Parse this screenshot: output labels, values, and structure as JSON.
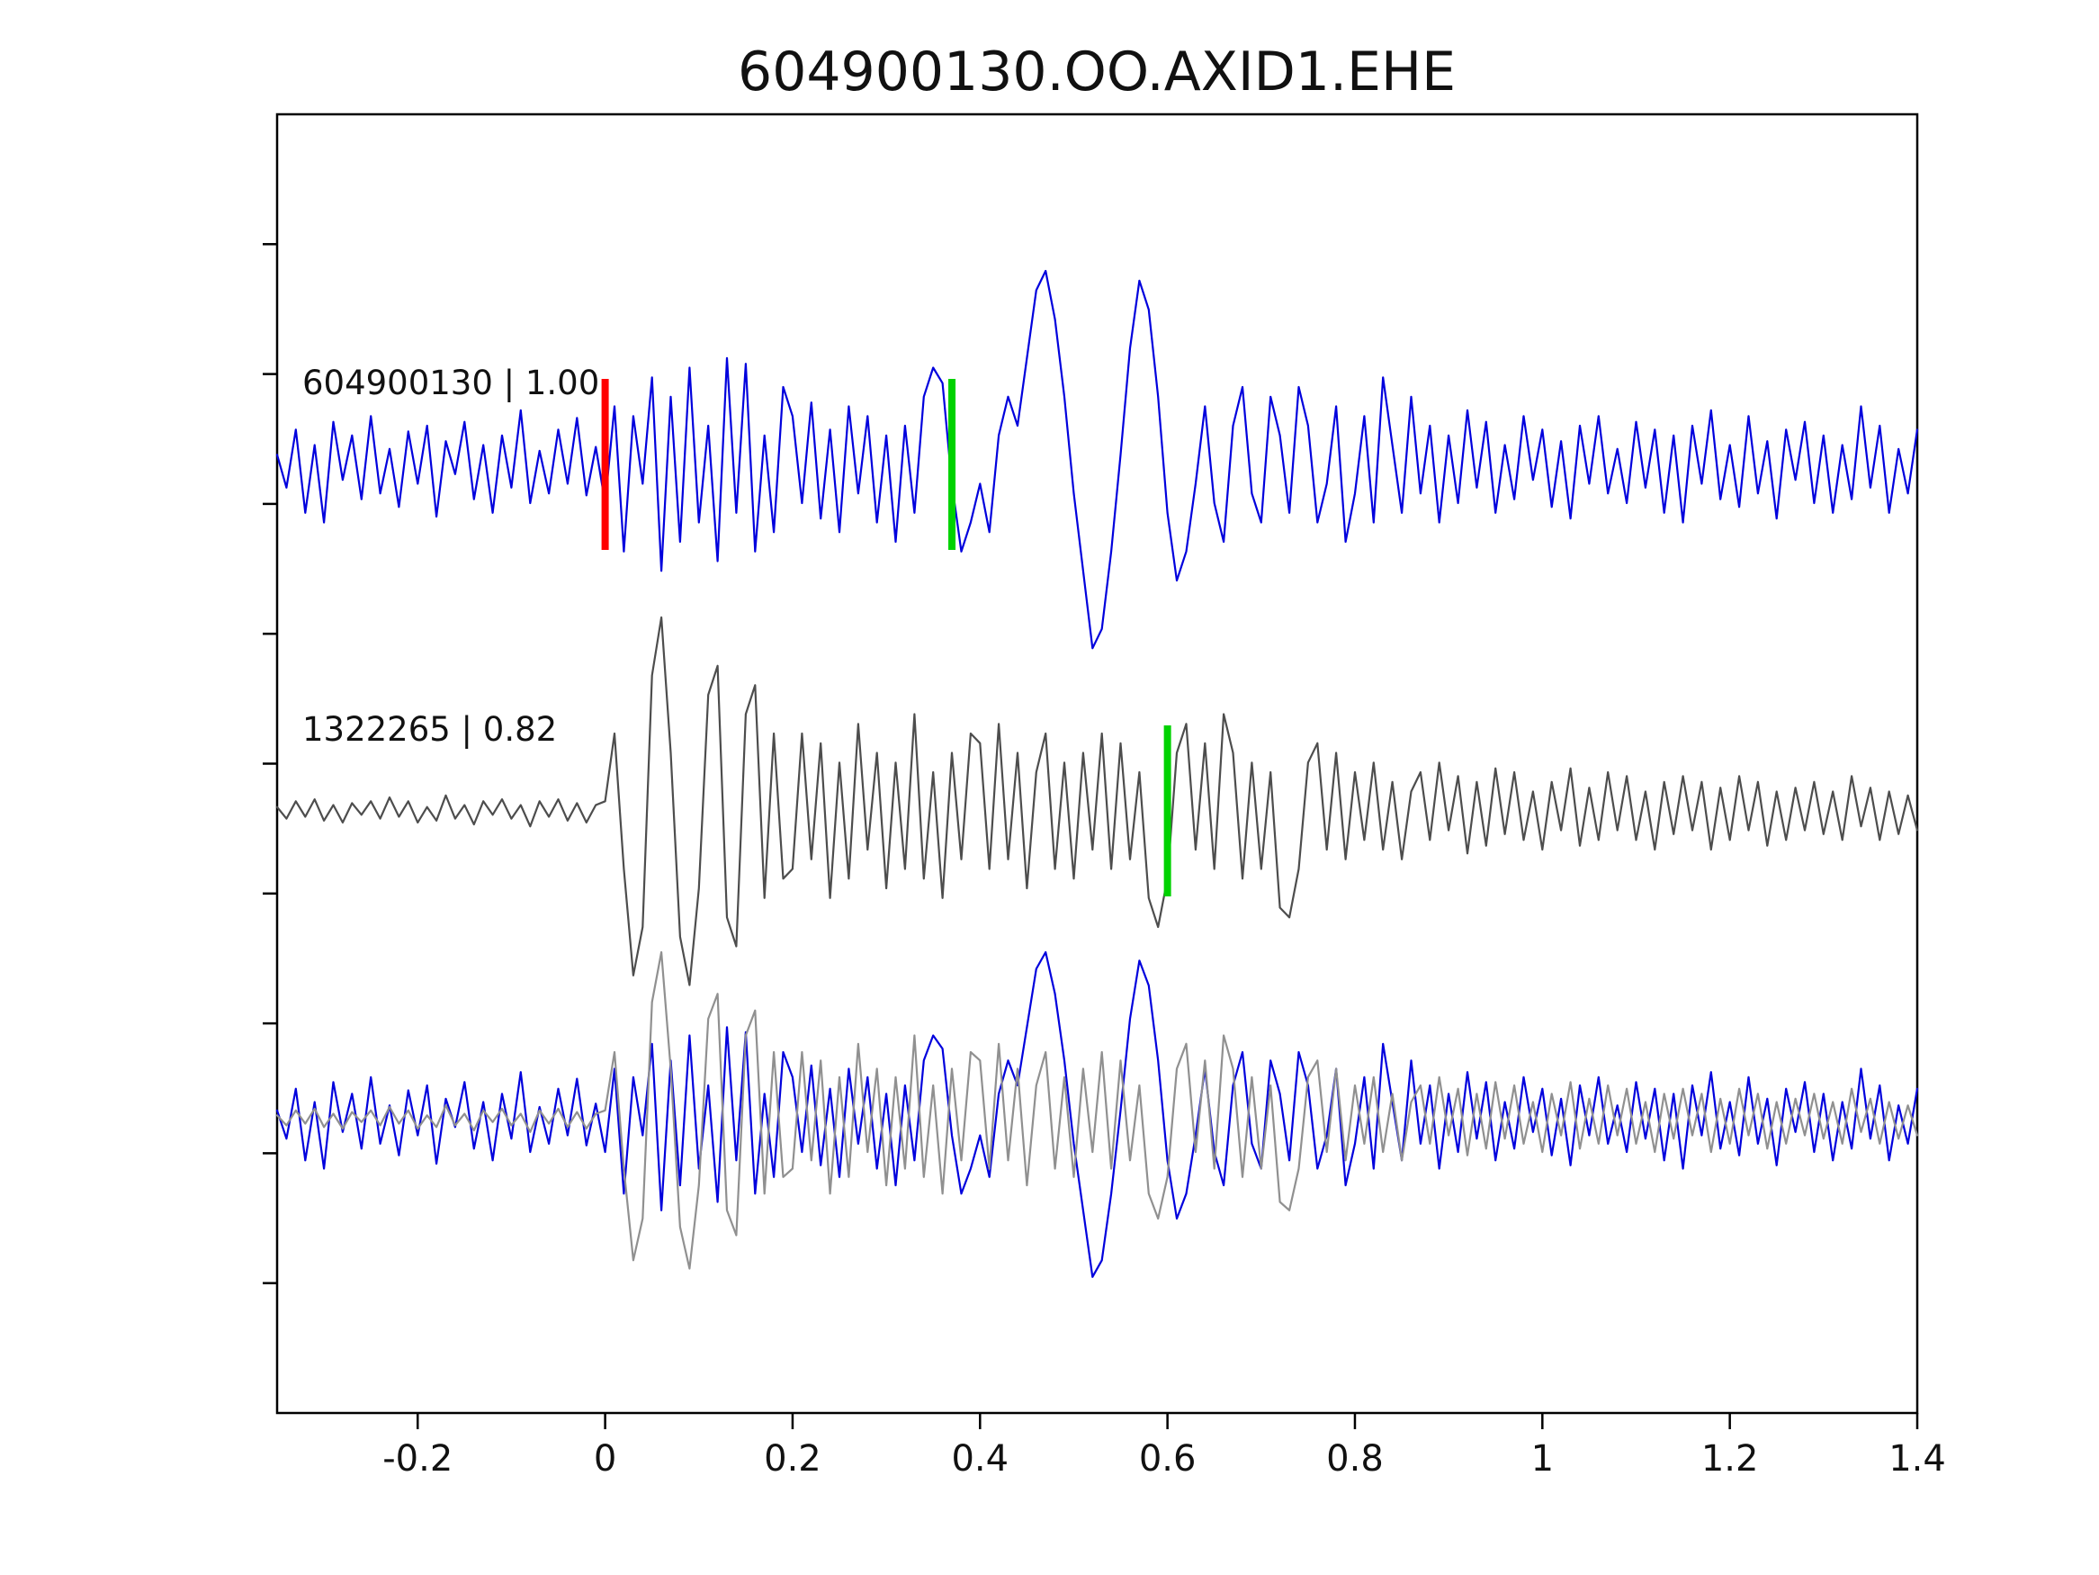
{
  "title": "604900130.OO.AXID1.EHE",
  "chart_data": {
    "type": "line",
    "title": "604900130.OO.AXID1.EHE",
    "subtitle": "",
    "xlabel": "",
    "ylabel": "",
    "grid": false,
    "legend_position": "none",
    "axis_color": "#000000",
    "background_color": "#ffffff",
    "xlim": [
      -0.35,
      1.4
    ],
    "xticks": [
      -0.2,
      0,
      0.2,
      0.4,
      0.6,
      0.8,
      1,
      1.2,
      1.4
    ],
    "xtick_labels": [
      "-0.2",
      "0",
      "0.2",
      "0.4",
      "0.6",
      "0.8",
      "1",
      "1.2",
      "1.4"
    ],
    "rows": 3,
    "traces": [
      {
        "name": "template-trace",
        "label": "604900130 | 1.00",
        "id": "604900130",
        "correlation": "1.00",
        "color": "#0000dd",
        "overlay_color": "#0000dd",
        "rows": [
          0,
          2
        ],
        "x_start": -0.35,
        "dx": 0.01,
        "values": [
          0.05,
          -0.12,
          0.18,
          -0.25,
          0.1,
          -0.3,
          0.22,
          -0.08,
          0.15,
          -0.18,
          0.25,
          -0.15,
          0.08,
          -0.22,
          0.17,
          -0.1,
          0.2,
          -0.27,
          0.12,
          -0.05,
          0.22,
          -0.18,
          0.1,
          -0.25,
          0.15,
          -0.12,
          0.28,
          -0.2,
          0.07,
          -0.15,
          0.18,
          -0.1,
          0.24,
          -0.16,
          0.09,
          -0.2,
          0.3,
          -0.45,
          0.25,
          -0.1,
          0.45,
          -0.55,
          0.35,
          -0.4,
          0.5,
          -0.3,
          0.2,
          -0.5,
          0.55,
          -0.25,
          0.52,
          -0.45,
          0.15,
          -0.35,
          0.4,
          0.25,
          -0.2,
          0.32,
          -0.28,
          0.18,
          -0.35,
          0.3,
          -0.15,
          0.25,
          -0.3,
          0.15,
          -0.4,
          0.2,
          -0.25,
          0.35,
          0.5,
          0.42,
          -0.1,
          -0.45,
          -0.3,
          -0.1,
          -0.35,
          0.15,
          0.35,
          0.2,
          0.55,
          0.9,
          1.0,
          0.75,
          0.35,
          -0.15,
          -0.55,
          -0.95,
          -0.85,
          -0.45,
          0.05,
          0.6,
          0.95,
          0.8,
          0.35,
          -0.25,
          -0.6,
          -0.45,
          -0.1,
          0.3,
          -0.2,
          -0.4,
          0.2,
          0.4,
          -0.15,
          -0.3,
          0.35,
          0.15,
          -0.25,
          0.4,
          0.2,
          -0.3,
          -0.1,
          0.3,
          -0.4,
          -0.15,
          0.25,
          -0.3,
          0.45,
          0.1,
          -0.25,
          0.35,
          -0.15,
          0.2,
          -0.3,
          0.15,
          -0.2,
          0.28,
          -0.12,
          0.22,
          -0.25,
          0.1,
          -0.18,
          0.25,
          -0.08,
          0.18,
          -0.22,
          0.12,
          -0.28,
          0.2,
          -0.1,
          0.25,
          -0.15,
          0.08,
          -0.2,
          0.22,
          -0.12,
          0.18,
          -0.25,
          0.15,
          -0.3,
          0.2,
          -0.1,
          0.28,
          -0.18,
          0.1,
          -0.22,
          0.25,
          -0.15,
          0.12,
          -0.28,
          0.18,
          -0.08,
          0.22,
          -0.2,
          0.15,
          -0.25,
          0.1,
          -0.18,
          0.3,
          -0.12,
          0.2,
          -0.25,
          0.08,
          -0.15,
          0.18
        ]
      },
      {
        "name": "matched-trace",
        "label": "1322265 | 0.82",
        "id": "1322265",
        "correlation": "0.82",
        "color": "#4d4d4d",
        "overlay_color": "#909090",
        "rows": [
          1,
          2
        ],
        "x_start": -0.35,
        "dx": 0.01,
        "values": [
          0.02,
          -0.04,
          0.05,
          -0.03,
          0.06,
          -0.05,
          0.03,
          -0.06,
          0.04,
          -0.02,
          0.05,
          -0.04,
          0.07,
          -0.03,
          0.05,
          -0.06,
          0.02,
          -0.05,
          0.08,
          -0.04,
          0.03,
          -0.07,
          0.05,
          -0.02,
          0.06,
          -0.04,
          0.03,
          -0.08,
          0.05,
          -0.03,
          0.06,
          -0.05,
          0.04,
          -0.06,
          0.03,
          0.05,
          0.4,
          -0.3,
          -0.85,
          -0.6,
          0.7,
          1.0,
          0.3,
          -0.65,
          -0.9,
          -0.4,
          0.6,
          0.75,
          -0.55,
          -0.7,
          0.5,
          0.65,
          -0.45,
          0.4,
          -0.35,
          -0.3,
          0.4,
          -0.25,
          0.35,
          -0.45,
          0.25,
          -0.35,
          0.45,
          -0.2,
          0.3,
          -0.4,
          0.25,
          -0.3,
          0.5,
          -0.35,
          0.2,
          -0.45,
          0.3,
          -0.25,
          0.4,
          0.35,
          -0.3,
          0.45,
          -0.25,
          0.3,
          -0.4,
          0.2,
          0.4,
          -0.3,
          0.25,
          -0.35,
          0.3,
          -0.2,
          0.4,
          -0.3,
          0.35,
          -0.25,
          0.2,
          -0.45,
          -0.6,
          -0.35,
          0.3,
          0.45,
          -0.2,
          0.35,
          -0.3,
          0.5,
          0.3,
          -0.35,
          0.25,
          -0.3,
          0.2,
          -0.5,
          -0.55,
          -0.3,
          0.25,
          0.35,
          -0.2,
          0.3,
          -0.25,
          0.2,
          -0.15,
          0.25,
          -0.2,
          0.15,
          -0.25,
          0.1,
          0.2,
          -0.15,
          0.25,
          -0.1,
          0.18,
          -0.22,
          0.15,
          -0.18,
          0.22,
          -0.12,
          0.2,
          -0.15,
          0.1,
          -0.2,
          0.15,
          -0.1,
          0.22,
          -0.18,
          0.12,
          -0.15,
          0.2,
          -0.1,
          0.18,
          -0.15,
          0.1,
          -0.2,
          0.15,
          -0.12,
          0.18,
          -0.1,
          0.15,
          -0.2,
          0.12,
          -0.15,
          0.18,
          -0.1,
          0.15,
          -0.18,
          0.1,
          -0.15,
          0.12,
          -0.1,
          0.15,
          -0.12,
          0.1,
          -0.15,
          0.18,
          -0.08,
          0.12,
          -0.15,
          0.1,
          -0.12,
          0.08,
          -0.1
        ]
      }
    ],
    "markers": [
      {
        "name": "template-origin-pick",
        "x": 0.0,
        "row": 0,
        "color": "#ff0000"
      },
      {
        "name": "template-phase-pick",
        "x": 0.37,
        "row": 0,
        "color": "#00d200"
      },
      {
        "name": "matched-phase-pick",
        "x": 0.6,
        "row": 1,
        "color": "#00d200"
      }
    ]
  }
}
